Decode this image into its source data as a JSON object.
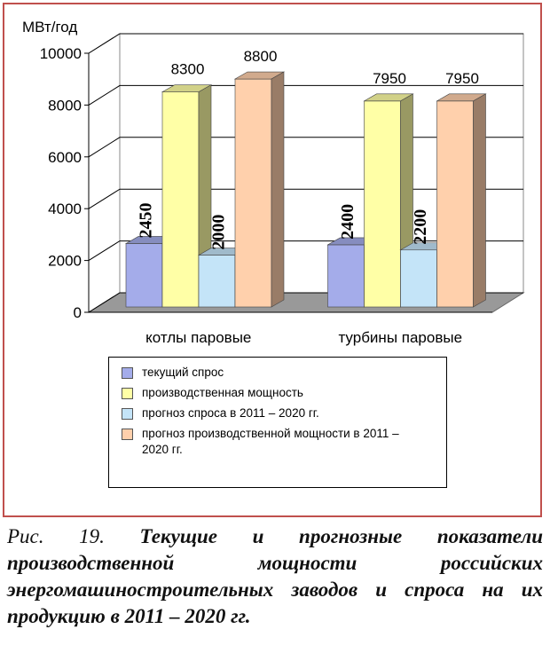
{
  "chart_data": {
    "type": "bar3d",
    "y_label": "МВт/год",
    "categories": [
      "котлы паровые",
      "турбины паровые"
    ],
    "series": [
      {
        "name": "текущий спрос",
        "color": "#a4acea",
        "values": [
          2450,
          2400
        ]
      },
      {
        "name": "производственная мощность",
        "color": "#ffffa6",
        "values": [
          8300,
          7950
        ]
      },
      {
        "name": "прогноз спроса в 2011 – 2020 гг.",
        "color": "#c4e4f8",
        "values": [
          2000,
          2200
        ]
      },
      {
        "name": "прогноз производственной мощности в 2011 – 2020 гг.",
        "color": "#ffd0ac",
        "values": [
          8800,
          7950
        ]
      }
    ],
    "rotated_labels": [
      true,
      false,
      true,
      false
    ],
    "ylim": [
      0,
      10000
    ],
    "yticks": [
      0,
      2000,
      4000,
      6000,
      8000,
      10000
    ],
    "grid": true
  },
  "caption_label": "Рис. 19.",
  "caption": "Текущие и прогнозные показатели производственной мощности российских энергомашиностроительных заводов и спроса на их продукцию в 2011 – 2020 гг."
}
